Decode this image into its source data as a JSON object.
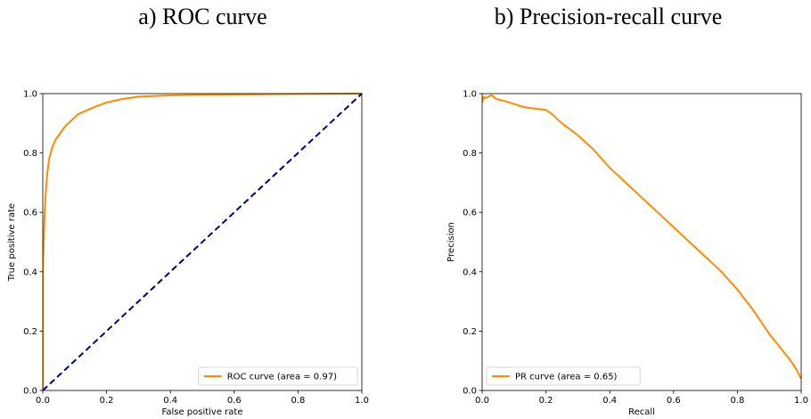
{
  "titles": {
    "a": "a) ROC curve",
    "b": "b) Precision-recall curve"
  },
  "colors": {
    "curve": "#ff8c00",
    "diagonal": "#000080",
    "frame": "#000000",
    "legend_border": "#cccccc"
  },
  "chart_data": [
    {
      "type": "line",
      "title": "",
      "xlabel": "False positive rate",
      "ylabel": "True positive rate",
      "xlim": [
        0,
        1
      ],
      "ylim": [
        0,
        1
      ],
      "xticks": [
        "0.0",
        "0.2",
        "0.4",
        "0.6",
        "0.8",
        "1.0"
      ],
      "yticks": [
        "0.0",
        "0.2",
        "0.4",
        "0.6",
        "0.8",
        "1.0"
      ],
      "grid": false,
      "legend_position": "lower-right",
      "series": [
        {
          "name": "ROC curve (area = 0.97)",
          "style": "solid",
          "x": [
            0,
            0,
            0.003,
            0.006,
            0.01,
            0.015,
            0.02,
            0.03,
            0.04,
            0.05,
            0.07,
            0.09,
            0.11,
            0.14,
            0.17,
            0.2,
            0.25,
            0.3,
            0.4,
            0.5,
            0.6,
            0.8,
            1.0
          ],
          "y": [
            0,
            0.4,
            0.5,
            0.6,
            0.68,
            0.74,
            0.78,
            0.82,
            0.845,
            0.86,
            0.89,
            0.91,
            0.93,
            0.945,
            0.958,
            0.97,
            0.982,
            0.99,
            0.994,
            0.996,
            0.997,
            0.999,
            1.0
          ]
        },
        {
          "style": "dashed",
          "x": [
            0,
            1
          ],
          "y": [
            0,
            1
          ]
        }
      ]
    },
    {
      "type": "line",
      "title": "",
      "xlabel": "Recall",
      "ylabel": "Precision",
      "xlim": [
        0,
        1
      ],
      "ylim": [
        0,
        1
      ],
      "xticks": [
        "0.0",
        "0.2",
        "0.4",
        "0.6",
        "0.8",
        "1.0"
      ],
      "yticks": [
        "0.0",
        "0.2",
        "0.4",
        "0.6",
        "0.8",
        "1.0"
      ],
      "grid": false,
      "legend_position": "lower-left",
      "series": [
        {
          "name": "PR curve (area = 0.65)",
          "style": "solid",
          "x": [
            0,
            0.005,
            0.01,
            0.02,
            0.03,
            0.04,
            0.05,
            0.07,
            0.1,
            0.13,
            0.16,
            0.2,
            0.22,
            0.25,
            0.3,
            0.35,
            0.4,
            0.45,
            0.5,
            0.55,
            0.6,
            0.65,
            0.7,
            0.75,
            0.8,
            0.85,
            0.9,
            0.93,
            0.96,
            0.98,
            1.0
          ],
          "y": [
            0.97,
            0.99,
            0.985,
            0.99,
            0.995,
            0.985,
            0.98,
            0.975,
            0.965,
            0.955,
            0.95,
            0.945,
            0.93,
            0.9,
            0.86,
            0.81,
            0.75,
            0.7,
            0.65,
            0.6,
            0.55,
            0.5,
            0.45,
            0.4,
            0.34,
            0.27,
            0.19,
            0.15,
            0.11,
            0.08,
            0.04
          ]
        }
      ]
    }
  ]
}
